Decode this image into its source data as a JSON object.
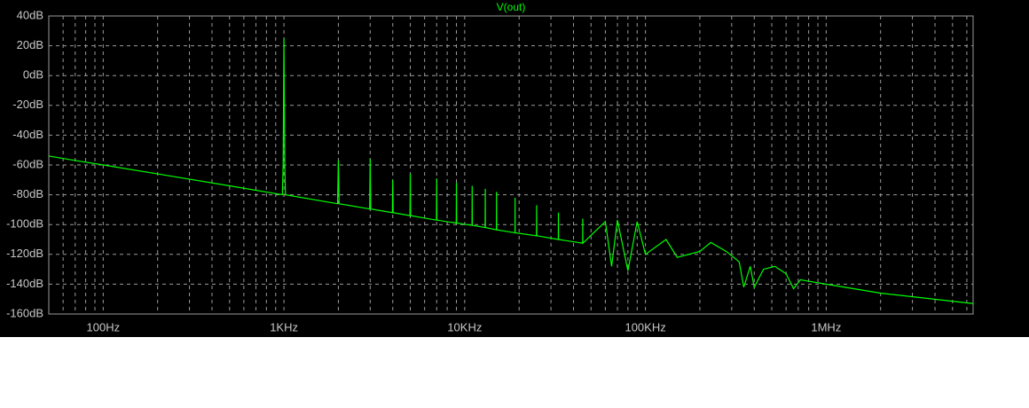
{
  "chart_data": {
    "type": "line",
    "title": "V(out)",
    "xscale": "log",
    "grid": true,
    "xlim": [
      50,
      6500000
    ],
    "ylim": [
      -160,
      40
    ],
    "xticks": [
      {
        "value": 100,
        "label": "100Hz"
      },
      {
        "value": 1000,
        "label": "1KHz"
      },
      {
        "value": 10000,
        "label": "10KHz"
      },
      {
        "value": 100000,
        "label": "100KHz"
      },
      {
        "value": 1000000,
        "label": "1MHz"
      }
    ],
    "xminorticks": [
      60,
      70,
      80,
      90,
      200,
      300,
      400,
      500,
      600,
      700,
      800,
      900,
      2000,
      3000,
      4000,
      5000,
      6000,
      7000,
      8000,
      9000,
      20000,
      30000,
      40000,
      50000,
      60000,
      70000,
      80000,
      90000,
      200000,
      300000,
      400000,
      500000,
      600000,
      700000,
      800000,
      900000,
      2000000,
      3000000,
      4000000,
      5000000,
      6000000
    ],
    "yticks": [
      {
        "value": 40,
        "label": "40dB"
      },
      {
        "value": 20,
        "label": "20dB"
      },
      {
        "value": 0,
        "label": "0dB"
      },
      {
        "value": -20,
        "label": "-20dB"
      },
      {
        "value": -40,
        "label": "-40dB"
      },
      {
        "value": -60,
        "label": "-60dB"
      },
      {
        "value": -80,
        "label": "-80dB"
      },
      {
        "value": -100,
        "label": "-100dB"
      },
      {
        "value": -120,
        "label": "-120dB"
      },
      {
        "value": -140,
        "label": "-140dB"
      },
      {
        "value": -160,
        "label": "-160dB"
      }
    ],
    "series": [
      {
        "color": "#00ff00",
        "x": [
          50,
          70,
          100,
          200,
          500,
          980,
          990,
          1000,
          1010,
          1020,
          1980,
          2000,
          2020,
          2980,
          3000,
          3020,
          3980,
          4000,
          4020,
          4980,
          5000,
          5020,
          6980,
          7000,
          7020,
          8980,
          9000,
          9020,
          10980,
          11000,
          11020,
          12980,
          13000,
          13020,
          14980,
          15000,
          15020,
          18980,
          19000,
          19020,
          24950,
          25000,
          25050,
          32950,
          33000,
          33050,
          44950,
          45000,
          45050,
          60000,
          65000,
          70000,
          80000,
          90000,
          100000,
          130000,
          150000,
          200000,
          230000,
          280000,
          330000,
          350000,
          380000,
          400000,
          450000,
          520000,
          600000,
          660000,
          720000,
          800000,
          1000000,
          2000000,
          6500000
        ],
        "values": [
          -54,
          -57,
          -60,
          -66,
          -74,
          -80,
          -60,
          25,
          -60,
          -80,
          -86,
          -57,
          -86,
          -89.5,
          -56,
          -89.5,
          -92,
          -70,
          -92,
          -94,
          -66,
          -94,
          -97,
          -69,
          -97,
          -99,
          -72,
          -99,
          -100.5,
          -74,
          -100.5,
          -102,
          -76,
          -102,
          -103.5,
          -78,
          -103.5,
          -105.5,
          -82,
          -105.5,
          -107.5,
          -87,
          -107.5,
          -110,
          -92,
          -110,
          -112.5,
          -96,
          -112.5,
          -98,
          -128,
          -97,
          -131,
          -98,
          -120,
          -110,
          -122,
          -118,
          -112,
          -118,
          -125,
          -142,
          -128,
          -142,
          -130,
          -128,
          -133,
          -143,
          -137,
          -138,
          -140,
          -146,
          -153
        ]
      }
    ]
  }
}
